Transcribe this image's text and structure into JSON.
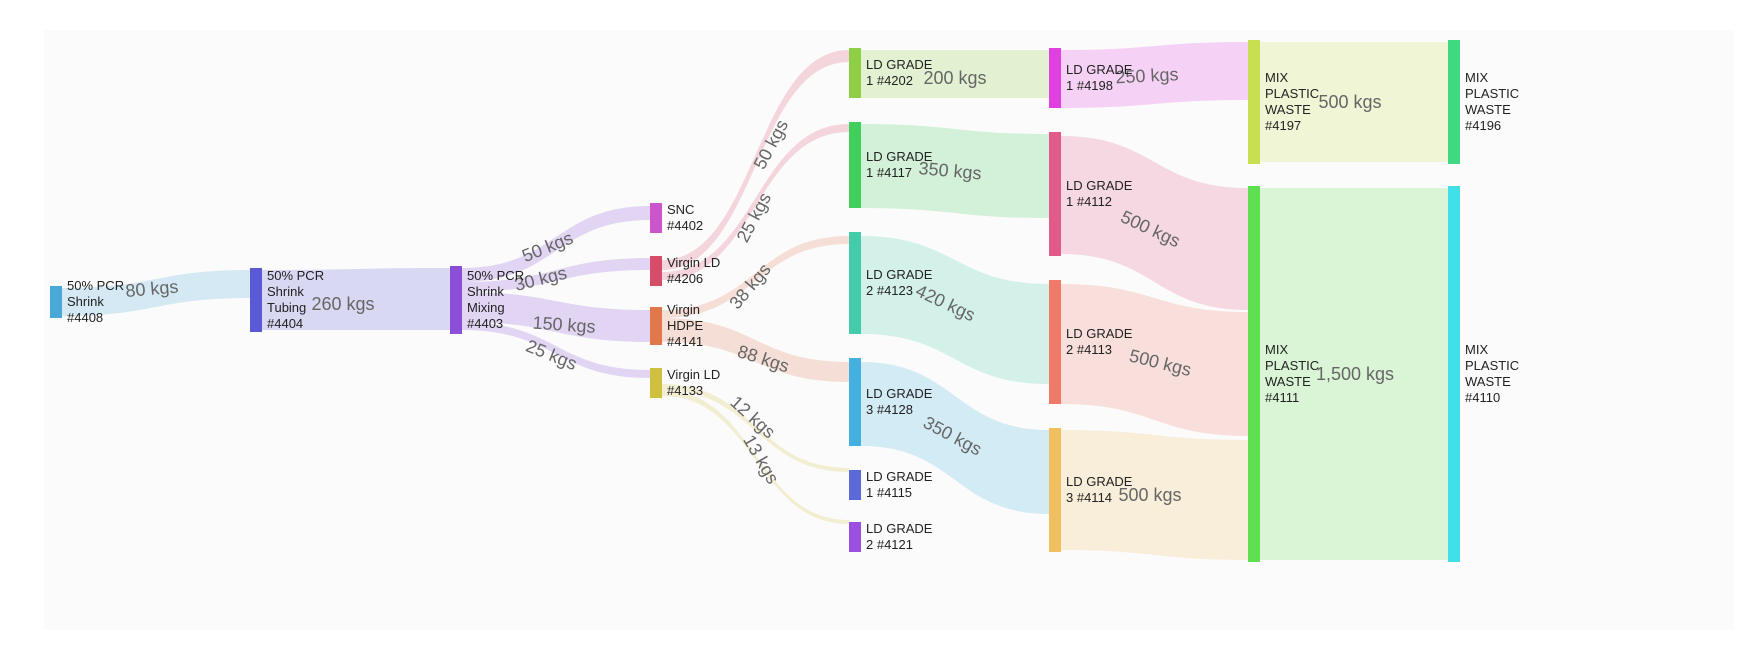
{
  "nodes": [
    {
      "id": "n4408",
      "lines": [
        "50% PCR",
        "Shrink",
        "#4408"
      ],
      "color": "#4aa8d8"
    },
    {
      "id": "n4404",
      "lines": [
        "50% PCR",
        "Shrink",
        "Tubing",
        "#4404"
      ],
      "color": "#5a5ad6"
    },
    {
      "id": "n4403",
      "lines": [
        "50% PCR",
        "Shrink",
        "Mixing",
        "#4403"
      ],
      "color": "#8a4fd6"
    },
    {
      "id": "n4402",
      "lines": [
        "SNC",
        "#4402"
      ],
      "color": "#cc55cc"
    },
    {
      "id": "n4206",
      "lines": [
        "Virgin LD",
        "#4206"
      ],
      "color": "#d64d6a"
    },
    {
      "id": "n4141",
      "lines": [
        "Virgin",
        "HDPE",
        "#4141"
      ],
      "color": "#e0784c"
    },
    {
      "id": "n4133",
      "lines": [
        "Virgin LD",
        "#4133"
      ],
      "color": "#d0c040"
    },
    {
      "id": "n4202",
      "lines": [
        "LD GRADE",
        "1 #4202"
      ],
      "color": "#8fcf45"
    },
    {
      "id": "n4117",
      "lines": [
        "LD GRADE",
        "1 #4117"
      ],
      "color": "#3fcf5a"
    },
    {
      "id": "n4123",
      "lines": [
        "LD GRADE",
        "2 #4123"
      ],
      "color": "#44ccaa"
    },
    {
      "id": "n4128",
      "lines": [
        "LD GRADE",
        "3 #4128"
      ],
      "color": "#44b0e0"
    },
    {
      "id": "n4115",
      "lines": [
        "LD GRADE",
        "1 #4115"
      ],
      "color": "#5a6ad8"
    },
    {
      "id": "n4121",
      "lines": [
        "LD GRADE",
        "2 #4121"
      ],
      "color": "#9a4fe0"
    },
    {
      "id": "n4198",
      "lines": [
        "LD GRADE",
        "1 #4198"
      ],
      "color": "#e040e0"
    },
    {
      "id": "n4112",
      "lines": [
        "LD GRADE",
        "1 #4112"
      ],
      "color": "#e05a8a"
    },
    {
      "id": "n4113",
      "lines": [
        "LD GRADE",
        "2 #4113"
      ],
      "color": "#ef7a6a"
    },
    {
      "id": "n4114",
      "lines": [
        "LD GRADE",
        "3 #4114"
      ],
      "color": "#f0c060"
    },
    {
      "id": "n4197",
      "lines": [
        "MIX",
        "PLASTIC",
        "WASTE",
        "#4197"
      ],
      "color": "#c8e050"
    },
    {
      "id": "n4111",
      "lines": [
        "MIX",
        "PLASTIC",
        "WASTE",
        "#4111"
      ],
      "color": "#60e050"
    },
    {
      "id": "n4196",
      "lines": [
        "MIX",
        "PLASTIC",
        "WASTE",
        "#4196"
      ],
      "color": "#40d880"
    },
    {
      "id": "n4110",
      "lines": [
        "MIX",
        "PLASTIC",
        "WASTE",
        "#4110"
      ],
      "color": "#40e0e8"
    }
  ],
  "flows": [
    {
      "source": "n4408",
      "target": "n4404",
      "value": 80,
      "label": "80 kgs"
    },
    {
      "source": "n4404",
      "target": "n4403",
      "value": 260,
      "label": "260 kgs"
    },
    {
      "source": "n4403",
      "target": "n4402",
      "value": 50,
      "label": "50 kgs"
    },
    {
      "source": "n4403",
      "target": "n4206",
      "value": 30,
      "label": "30 kgs"
    },
    {
      "source": "n4403",
      "target": "n4141",
      "value": 150,
      "label": "150 kgs"
    },
    {
      "source": "n4403",
      "target": "n4133",
      "value": 25,
      "label": "25 kgs"
    },
    {
      "source": "n4206",
      "target": "n4202",
      "value": 50,
      "label": "50 kgs"
    },
    {
      "source": "n4206",
      "target": "n4117",
      "value": 25,
      "label": "25 kgs"
    },
    {
      "source": "n4141",
      "target": "n4123",
      "value": 38,
      "label": "38 kgs"
    },
    {
      "source": "n4141",
      "target": "n4128",
      "value": 88,
      "label": "88 kgs"
    },
    {
      "source": "n4133",
      "target": "n4115",
      "value": 12,
      "label": "12 kgs"
    },
    {
      "source": "n4133",
      "target": "n4121",
      "value": 13,
      "label": "13 kgs"
    },
    {
      "source": "n4202",
      "target": "n4198",
      "value": 200,
      "label": "200 kgs"
    },
    {
      "source": "n4117",
      "target": "n4112",
      "value": 350,
      "label": "350 kgs"
    },
    {
      "source": "n4123",
      "target": "n4113",
      "value": 420,
      "label": "420 kgs"
    },
    {
      "source": "n4128",
      "target": "n4114",
      "value": 350,
      "label": "350 kgs"
    },
    {
      "source": "n4198",
      "target": "n4197",
      "value": 250,
      "label": "250 kgs"
    },
    {
      "source": "n4112",
      "target": "n4111",
      "value": 500,
      "label": "500 kgs"
    },
    {
      "source": "n4113",
      "target": "n4111",
      "value": 500,
      "label": "500 kgs"
    },
    {
      "source": "n4114",
      "target": "n4111",
      "value": 500,
      "label": "500 kgs"
    },
    {
      "source": "n4197",
      "target": "n4196",
      "value": 500,
      "label": "500 kgs"
    },
    {
      "source": "n4111",
      "target": "n4110",
      "value": 1500,
      "label": "1,500 kgs"
    }
  ]
}
